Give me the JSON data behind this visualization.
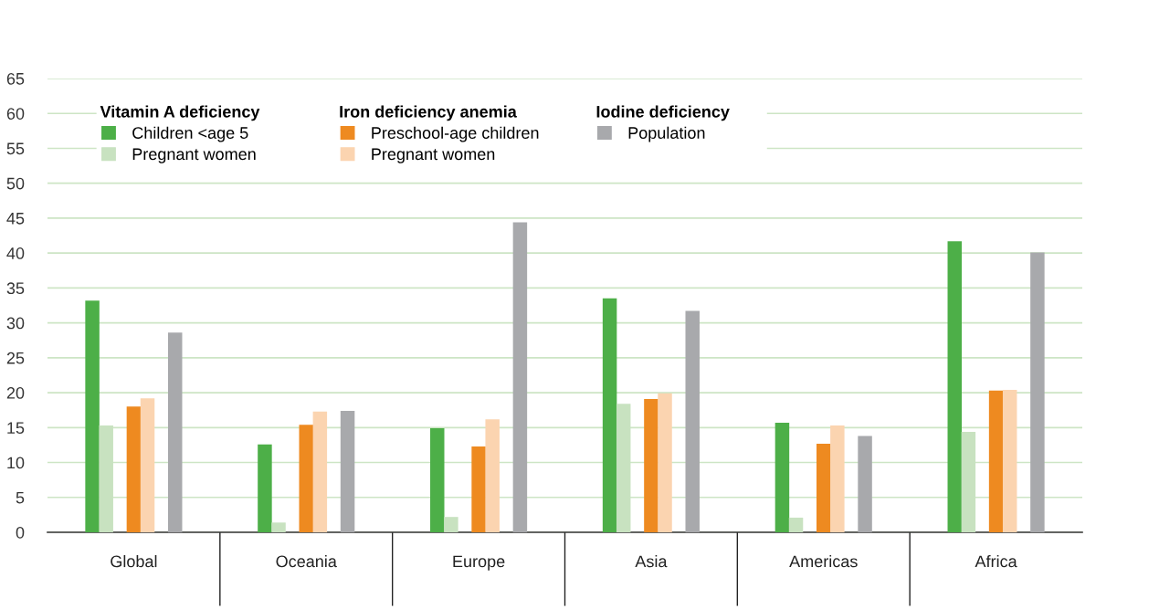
{
  "chart_data": {
    "type": "bar",
    "categories": [
      "Global",
      "Oceania",
      "Europe",
      "Asia",
      "Americas",
      "Africa"
    ],
    "series": [
      {
        "name": "Children <age 5",
        "color": "#4daf48",
        "values": [
          33.2,
          12.6,
          14.9,
          33.5,
          15.7,
          41.7
        ]
      },
      {
        "name": "Pregnant women",
        "color": "#c8e2c0",
        "values": [
          15.3,
          1.4,
          2.2,
          18.4,
          2.1,
          14.4
        ]
      },
      {
        "name": "Preschool-age children",
        "color": "#ee8a20",
        "values": [
          18.0,
          15.4,
          12.3,
          19.1,
          12.7,
          20.3
        ]
      },
      {
        "name": "Pregnant women",
        "color": "#fbd4b0",
        "values": [
          19.2,
          17.3,
          16.2,
          19.9,
          15.3,
          20.4
        ]
      },
      {
        "name": "Population",
        "color": "#a8a9ac",
        "values": [
          28.6,
          17.4,
          44.4,
          31.7,
          13.8,
          40.1
        ]
      }
    ],
    "annotations": [
      "Vitamin A deficiency",
      "Iron deficiency anemia",
      "Iodine deficiency"
    ],
    "ylim": [
      0,
      65
    ],
    "yticks": [
      0,
      5,
      10,
      15,
      20,
      25,
      30,
      35,
      40,
      45,
      50,
      55,
      60,
      65
    ],
    "grid": "y",
    "legend": "top left"
  }
}
